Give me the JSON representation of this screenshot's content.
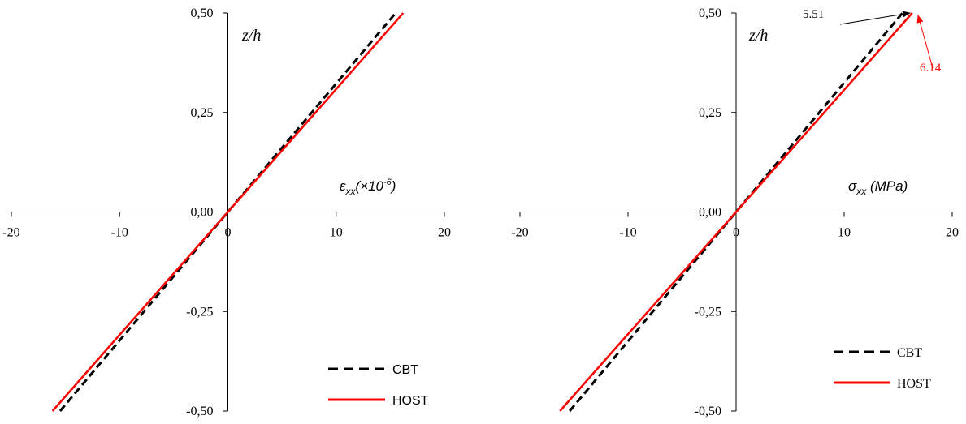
{
  "chart_data": [
    {
      "type": "line",
      "ylabel": "z/h",
      "xlabel_symbol": "ε",
      "xlabel_sub": "xx",
      "xlabel_main": "(×10",
      "xlabel_sup": "-6",
      "xlabel_close": ")",
      "xlim": [
        -20,
        20
      ],
      "ylim": [
        -0.5,
        0.5
      ],
      "x_ticks": [
        "-20",
        "-10",
        "0",
        "10",
        "20"
      ],
      "y_ticks": [
        "-0,50",
        "-0,25",
        "0,00",
        "0,25",
        "0,50"
      ],
      "legend_font": "sans",
      "series": [
        {
          "name": "CBT",
          "style": "dashed",
          "color": "#000000",
          "x": [
            -15.5,
            15.5
          ],
          "y": [
            -0.5,
            0.5
          ]
        },
        {
          "name": "HOST",
          "style": "solid",
          "color": "#ff0000",
          "x": [
            -16.2,
            16.2
          ],
          "y": [
            -0.5,
            0.5
          ]
        }
      ],
      "annotations": []
    },
    {
      "type": "line",
      "ylabel": "z/h",
      "xlabel_symbol": "σ",
      "xlabel_sub": "xx",
      "xlabel_main": " (MPa)",
      "xlabel_sup": "",
      "xlabel_close": "",
      "xlim": [
        -20,
        20
      ],
      "ylim": [
        -0.5,
        0.5
      ],
      "x_ticks": [
        "-20",
        "-10",
        "0",
        "10",
        "20"
      ],
      "y_ticks": [
        "-0,50",
        "-0,25",
        "0,00",
        "0,25",
        "0,50"
      ],
      "legend_font": "serif",
      "series": [
        {
          "name": "CBT",
          "style": "dashed",
          "color": "#000000",
          "x": [
            -15.4,
            15.4
          ],
          "y": [
            -0.5,
            0.5
          ]
        },
        {
          "name": "HOST",
          "style": "solid",
          "color": "#ff0000",
          "x": [
            -16.3,
            16.3
          ],
          "y": [
            -0.5,
            0.5
          ]
        }
      ],
      "annotations": [
        {
          "text": "5.51",
          "color": "#000000"
        },
        {
          "text": "6.14",
          "color": "#ff0000"
        }
      ]
    }
  ],
  "colors": {
    "cbt": "#000000",
    "host": "#ff0000"
  }
}
